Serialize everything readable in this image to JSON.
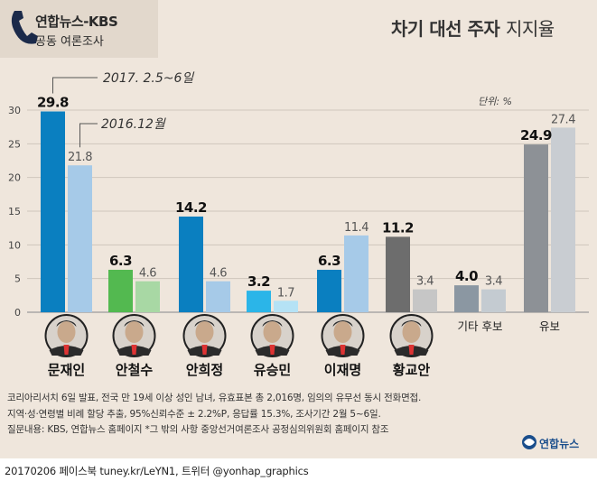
{
  "header": {
    "source_line1": "연합뉴스-KBS",
    "source_line2": "공동 여론조사",
    "title_bold": "차기 대선 주자",
    "title_light": "지지율"
  },
  "colors": {
    "series_2017": [
      "#0a7fc0",
      "#53b950",
      "#0a7fc0",
      "#2bb5e8",
      "#0a7fc0",
      "#6d6d6d",
      "#8b97a2",
      "#8d9196"
    ],
    "series_2016": [
      "#a6cae8",
      "#a8d8a4",
      "#a6cae8",
      "#b5e2f5",
      "#a6cae8",
      "#c6c6c6",
      "#c4cbd1",
      "#c9cdd2"
    ]
  },
  "chart_data": {
    "type": "bar",
    "unit_label": "단위: %",
    "categories": [
      "문재인",
      "안철수",
      "안희정",
      "유승민",
      "이재명",
      "황교안",
      "기타 후보",
      "유보"
    ],
    "series": [
      {
        "name": "2017. 2.5~6일",
        "values": [
          29.8,
          6.3,
          14.2,
          3.2,
          6.3,
          11.2,
          4.0,
          24.9
        ]
      },
      {
        "name": "2016.12월",
        "values": [
          21.8,
          4.6,
          4.6,
          1.7,
          11.4,
          3.4,
          3.4,
          27.4
        ]
      }
    ],
    "ylim": [
      0,
      30
    ],
    "yticks": [
      0,
      5,
      10,
      15,
      20,
      25,
      30
    ],
    "grid": true
  },
  "portraits": [
    "문재인",
    "안철수",
    "안희정",
    "유승민",
    "이재명",
    "황교안"
  ],
  "footnotes": [
    "코리아리서치 6일 발표, 전국 만 19세 이상 성인 남녀, 유효표본 총 2,016명, 임의의 유무선 동시 전화면접.",
    "지역·성·연령별 비례 할당 추출, 95%신뢰수준 ± 2.2%P, 응답률 15.3%, 조사기간 2월 5~6일.",
    "질문내용: KBS, 연합뉴스 홈페이지  *그 밖의 사항 중앙선거여론조사 공정심의위원회 홈페이지 참조"
  ],
  "logo": "연합뉴스",
  "caption": "20170206  페이스북 tuney.kr/LeYN1, 트위터 @yonhap_graphics"
}
